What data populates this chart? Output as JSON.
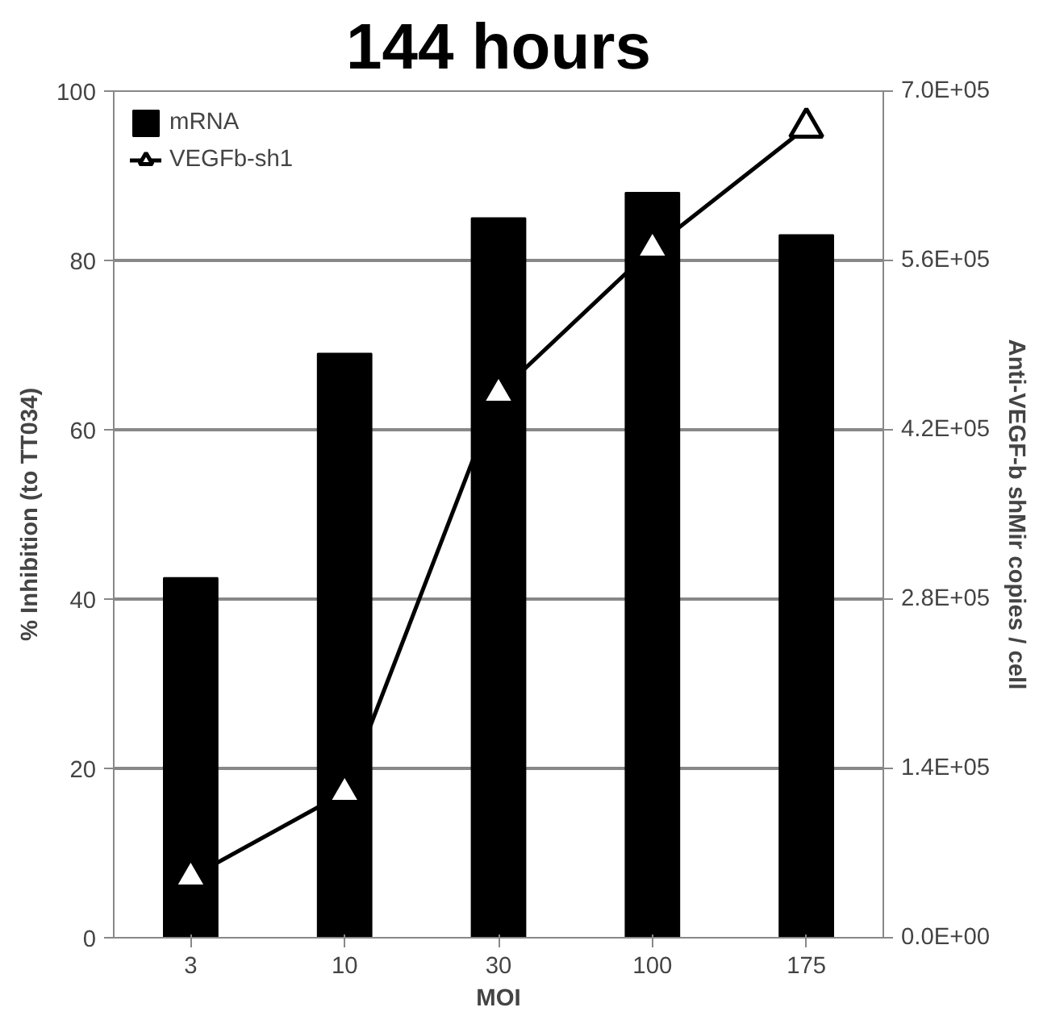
{
  "chart_data": {
    "type": "bar",
    "title": "144 hours",
    "xlabel": "MOI",
    "ylabel": "% Inhibition (to TT034)",
    "y2label": "Anti-VEGF-b shMir copies / cell",
    "categories": [
      "3",
      "10",
      "30",
      "100",
      "175"
    ],
    "series": [
      {
        "name": "mRNA",
        "color": "#000000",
        "values": [
          42.5,
          69,
          85,
          88,
          83
        ]
      },
      {
        "name": "VEGFb-sh1",
        "type": "line",
        "color": "#000000",
        "axis": "y2",
        "marker": "triangle",
        "line_style": "solid",
        "values": [
          50000,
          120000,
          450000,
          570000,
          670000
        ]
      }
    ],
    "ylim": [
      0,
      100
    ],
    "yticks": [
      0,
      20,
      40,
      60,
      80,
      100
    ],
    "y2lim": [
      0,
      700000
    ],
    "y2ticks": [
      {
        "value": 0,
        "label": "0.0E+00"
      },
      {
        "value": 140000,
        "label": "1.4E+05"
      },
      {
        "value": 280000,
        "label": "2.8E+05"
      },
      {
        "value": 420000,
        "label": "4.2E+05"
      },
      {
        "value": 560000,
        "label": "5.6E+05"
      },
      {
        "value": 700000,
        "label": "7.0E+05"
      }
    ],
    "grid": "y",
    "legend": "top left"
  }
}
